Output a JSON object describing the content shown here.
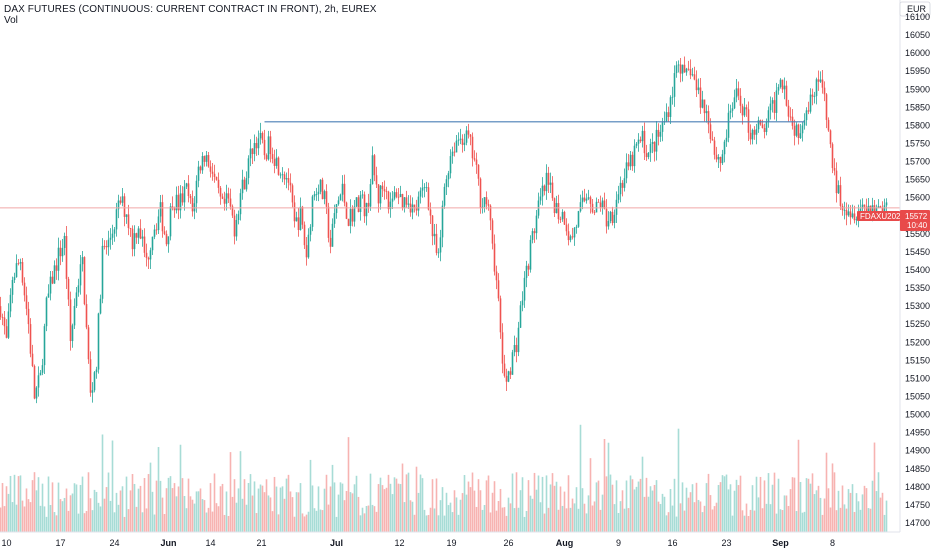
{
  "title": "DAX FUTURES (CONTINUOUS: CURRENT CONTRACT IN FRONT), 2h, EUREX",
  "volume_label": "Vol",
  "currency": "EUR",
  "colors": {
    "up": "#26a69a",
    "down": "#ef5350",
    "up_vol": "#a7dcd6",
    "down_vol": "#f7b3b1",
    "trendline": "#4a7fb5",
    "price_line": "#f0a8a8",
    "tag": "#e84a4a"
  },
  "chart_data": {
    "type": "candlestick",
    "ylim": [
      14675,
      16125
    ],
    "y_ticks": [
      16100,
      16050,
      16000,
      15950,
      15900,
      15850,
      15800,
      15750,
      15700,
      15650,
      15600,
      15550,
      15500,
      15450,
      15400,
      15350,
      15300,
      15250,
      15200,
      15150,
      15100,
      15050,
      15000,
      14950,
      14900,
      14850,
      14800,
      14750,
      14700
    ],
    "x_ticks": [
      {
        "label": "10",
        "bold": false
      },
      {
        "label": "17",
        "bold": false
      },
      {
        "label": "24",
        "bold": false
      },
      {
        "label": "Jun",
        "bold": true
      },
      {
        "label": "14",
        "bold": false
      },
      {
        "label": "21",
        "bold": false
      },
      {
        "label": "Jul",
        "bold": true
      },
      {
        "label": "12",
        "bold": false
      },
      {
        "label": "19",
        "bold": false
      },
      {
        "label": "26",
        "bold": false
      },
      {
        "label": "Aug",
        "bold": true
      },
      {
        "label": "9",
        "bold": false
      },
      {
        "label": "16",
        "bold": false
      },
      {
        "label": "23",
        "bold": false
      },
      {
        "label": "Sep",
        "bold": true
      },
      {
        "label": "8",
        "bold": false
      }
    ],
    "x_tick_index": [
      6,
      60,
      114,
      168,
      210,
      261,
      336,
      399,
      451,
      508,
      564,
      618,
      672,
      726,
      780,
      832
    ],
    "close_path": [
      [
        0,
        15300
      ],
      [
        6,
        15200
      ],
      [
        12,
        15380
      ],
      [
        20,
        15430
      ],
      [
        28,
        15250
      ],
      [
        34,
        15050
      ],
      [
        40,
        15100
      ],
      [
        46,
        15300
      ],
      [
        52,
        15380
      ],
      [
        58,
        15440
      ],
      [
        64,
        15480
      ],
      [
        70,
        15200
      ],
      [
        76,
        15350
      ],
      [
        82,
        15420
      ],
      [
        90,
        15050
      ],
      [
        96,
        15150
      ],
      [
        102,
        15450
      ],
      [
        108,
        15470
      ],
      [
        114,
        15530
      ],
      [
        120,
        15590
      ],
      [
        126,
        15560
      ],
      [
        132,
        15480
      ],
      [
        138,
        15530
      ],
      [
        146,
        15420
      ],
      [
        152,
        15510
      ],
      [
        160,
        15560
      ],
      [
        166,
        15480
      ],
      [
        172,
        15600
      ],
      [
        178,
        15580
      ],
      [
        186,
        15620
      ],
      [
        192,
        15560
      ],
      [
        198,
        15680
      ],
      [
        204,
        15720
      ],
      [
        210,
        15690
      ],
      [
        216,
        15620
      ],
      [
        222,
        15570
      ],
      [
        228,
        15590
      ],
      [
        234,
        15520
      ],
      [
        240,
        15610
      ],
      [
        246,
        15670
      ],
      [
        252,
        15740
      ],
      [
        258,
        15770
      ],
      [
        264,
        15720
      ],
      [
        270,
        15750
      ],
      [
        276,
        15700
      ],
      [
        282,
        15680
      ],
      [
        288,
        15650
      ],
      [
        294,
        15520
      ],
      [
        300,
        15550
      ],
      [
        306,
        15440
      ],
      [
        312,
        15600
      ],
      [
        318,
        15640
      ],
      [
        324,
        15590
      ],
      [
        330,
        15470
      ],
      [
        336,
        15580
      ],
      [
        342,
        15620
      ],
      [
        348,
        15540
      ],
      [
        354,
        15570
      ],
      [
        360,
        15600
      ],
      [
        366,
        15560
      ],
      [
        372,
        15690
      ],
      [
        378,
        15600
      ],
      [
        384,
        15640
      ],
      [
        390,
        15570
      ],
      [
        396,
        15620
      ],
      [
        402,
        15590
      ],
      [
        408,
        15600
      ],
      [
        414,
        15560
      ],
      [
        420,
        15600
      ],
      [
        426,
        15640
      ],
      [
        432,
        15500
      ],
      [
        438,
        15420
      ],
      [
        444,
        15630
      ],
      [
        450,
        15720
      ],
      [
        456,
        15760
      ],
      [
        462,
        15770
      ],
      [
        468,
        15760
      ],
      [
        474,
        15700
      ],
      [
        480,
        15600
      ],
      [
        486,
        15590
      ],
      [
        492,
        15480
      ],
      [
        498,
        15300
      ],
      [
        504,
        15080
      ],
      [
        510,
        15140
      ],
      [
        516,
        15200
      ],
      [
        522,
        15330
      ],
      [
        528,
        15430
      ],
      [
        534,
        15520
      ],
      [
        540,
        15590
      ],
      [
        546,
        15640
      ],
      [
        552,
        15600
      ],
      [
        558,
        15560
      ],
      [
        564,
        15550
      ],
      [
        570,
        15480
      ],
      [
        576,
        15530
      ],
      [
        582,
        15580
      ],
      [
        588,
        15620
      ],
      [
        594,
        15560
      ],
      [
        600,
        15590
      ],
      [
        606,
        15540
      ],
      [
        612,
        15560
      ],
      [
        618,
        15620
      ],
      [
        624,
        15660
      ],
      [
        630,
        15690
      ],
      [
        636,
        15740
      ],
      [
        642,
        15760
      ],
      [
        648,
        15720
      ],
      [
        654,
        15750
      ],
      [
        660,
        15780
      ],
      [
        666,
        15830
      ],
      [
        672,
        15900
      ],
      [
        678,
        15990
      ],
      [
        684,
        15920
      ],
      [
        690,
        15960
      ],
      [
        696,
        15900
      ],
      [
        702,
        15860
      ],
      [
        708,
        15820
      ],
      [
        714,
        15730
      ],
      [
        720,
        15700
      ],
      [
        726,
        15780
      ],
      [
        732,
        15860
      ],
      [
        738,
        15880
      ],
      [
        744,
        15840
      ],
      [
        750,
        15780
      ],
      [
        756,
        15800
      ],
      [
        762,
        15780
      ],
      [
        768,
        15820
      ],
      [
        774,
        15860
      ],
      [
        780,
        15950
      ],
      [
        786,
        15880
      ],
      [
        792,
        15800
      ],
      [
        798,
        15790
      ],
      [
        804,
        15840
      ],
      [
        810,
        15870
      ],
      [
        816,
        15930
      ],
      [
        822,
        15900
      ],
      [
        828,
        15780
      ],
      [
        834,
        15650
      ],
      [
        840,
        15600
      ],
      [
        846,
        15580
      ],
      [
        852,
        15560
      ],
      [
        858,
        15575
      ]
    ],
    "price_range_low": 14800,
    "price_range_high": 16025,
    "trendline": {
      "start_index": 264,
      "end_index": 804,
      "value": 15810
    },
    "last_price": {
      "symbol": "FDAXU2021",
      "value": "15572",
      "countdown": "10:40",
      "level": 15572
    }
  }
}
